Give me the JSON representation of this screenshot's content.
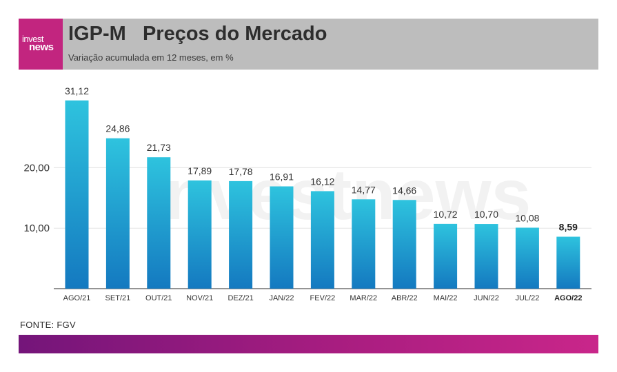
{
  "brand": {
    "logo_line1": "invest",
    "logo_line2": "news",
    "watermark": "investnews"
  },
  "header": {
    "title": "IGP-M   Preços do Mercado",
    "subtitle": "Variação acumulada em 12 meses, em %"
  },
  "source": "FONTE: FGV",
  "colors": {
    "bar_top": "#2ec3de",
    "bar_bottom": "#1479c0",
    "header_bg": "#bdbdbd",
    "logo_bg": "#c2257f"
  },
  "chart_data": {
    "type": "bar",
    "title": "IGP-M Preços do Mercado",
    "subtitle": "Variação acumulada em 12 meses, em %",
    "categories": [
      "AGO/21",
      "SET/21",
      "OUT/21",
      "NOV/21",
      "DEZ/21",
      "JAN/22",
      "FEV/22",
      "MAR/22",
      "ABR/22",
      "MAI/22",
      "JUN/22",
      "JUL/22",
      "AGO/22"
    ],
    "values": [
      31.12,
      24.86,
      21.73,
      17.89,
      17.78,
      16.91,
      16.12,
      14.77,
      14.66,
      10.72,
      10.7,
      10.08,
      8.59
    ],
    "value_labels": [
      "31,12",
      "24,86",
      "21,73",
      "17,89",
      "17,78",
      "16,91",
      "16,12",
      "14,77",
      "14,66",
      "10,72",
      "10,70",
      "10,08",
      "8,59"
    ],
    "highlight_index": 12,
    "yticks": [
      10,
      20
    ],
    "ytick_labels": [
      "10,00",
      "20,00"
    ],
    "ylim": [
      0,
      32
    ],
    "xlabel": "",
    "ylabel": "",
    "grid": true
  }
}
